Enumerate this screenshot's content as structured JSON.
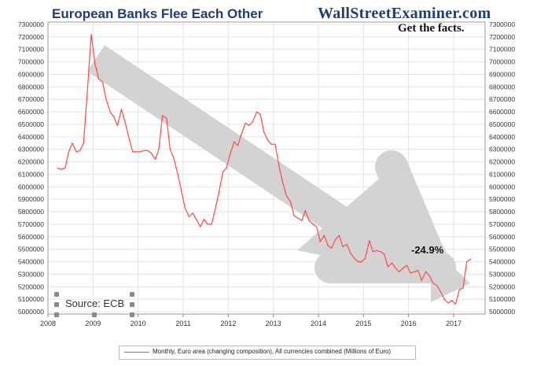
{
  "header": {
    "title": "European Banks Flee Each Other",
    "brand": "WallStreetExaminer.com",
    "tagline": "Get the facts."
  },
  "annotation": {
    "change_label": "-24.9%"
  },
  "source": {
    "label": "Source: ECB"
  },
  "legend": {
    "label": "Monthly, Euro area (changing composition), All currencies combined (Millions of Euro)"
  },
  "colors": {
    "series": "#ff4a4a",
    "arrow": "#d3d3d3",
    "title": "#1f3e78"
  },
  "chart_data": {
    "type": "line",
    "grid": true,
    "ylim": [
      5000000,
      7300000
    ],
    "xlim": [
      2008.0,
      2017.5
    ],
    "y_ticks": [
      5000000,
      5100000,
      5200000,
      5300000,
      5400000,
      5500000,
      5600000,
      5700000,
      5800000,
      5900000,
      6000000,
      6100000,
      6200000,
      6300000,
      6400000,
      6500000,
      6600000,
      6700000,
      6800000,
      6900000,
      7000000,
      7100000,
      7200000,
      7300000
    ],
    "x_ticks": [
      "2008",
      "2009",
      "2010",
      "2011",
      "2012",
      "2013",
      "2014",
      "2015",
      "2016",
      "2017"
    ],
    "series": [
      {
        "name": "Monthly, Euro area (changing composition), All currencies combined (Millions of Euro)",
        "x": [
          2008.21,
          2008.29,
          2008.38,
          2008.46,
          2008.54,
          2008.63,
          2008.71,
          2008.79,
          2008.88,
          2008.96,
          2009.04,
          2009.13,
          2009.21,
          2009.29,
          2009.38,
          2009.46,
          2009.54,
          2009.63,
          2009.71,
          2009.79,
          2009.88,
          2009.96,
          2010.04,
          2010.13,
          2010.21,
          2010.29,
          2010.38,
          2010.46,
          2010.54,
          2010.63,
          2010.71,
          2010.79,
          2010.88,
          2010.96,
          2011.04,
          2011.13,
          2011.21,
          2011.29,
          2011.38,
          2011.46,
          2011.54,
          2011.63,
          2011.71,
          2011.79,
          2011.88,
          2011.96,
          2012.04,
          2012.13,
          2012.21,
          2012.29,
          2012.38,
          2012.46,
          2012.54,
          2012.63,
          2012.71,
          2012.79,
          2012.88,
          2012.96,
          2013.04,
          2013.13,
          2013.21,
          2013.29,
          2013.38,
          2013.46,
          2013.54,
          2013.63,
          2013.71,
          2013.79,
          2013.88,
          2013.96,
          2014.04,
          2014.13,
          2014.21,
          2014.29,
          2014.38,
          2014.46,
          2014.54,
          2014.63,
          2014.71,
          2014.79,
          2014.88,
          2014.96,
          2015.04,
          2015.13,
          2015.21,
          2015.29,
          2015.38,
          2015.46,
          2015.54,
          2015.63,
          2015.71,
          2015.79,
          2015.88,
          2015.96,
          2016.04,
          2016.13,
          2016.21,
          2016.29,
          2016.38,
          2016.46,
          2016.54,
          2016.63,
          2016.71,
          2016.79,
          2016.88,
          2016.96,
          2017.04,
          2017.13,
          2017.21,
          2017.29,
          2017.38
        ],
        "values": [
          6150000,
          6140000,
          6150000,
          6280000,
          6350000,
          6280000,
          6290000,
          6350000,
          6800000,
          7220000,
          6990000,
          6860000,
          6840000,
          6700000,
          6600000,
          6560000,
          6490000,
          6620000,
          6520000,
          6400000,
          6280000,
          6280000,
          6280000,
          6290000,
          6290000,
          6270000,
          6220000,
          6300000,
          6570000,
          6550000,
          6300000,
          6230000,
          6100000,
          5970000,
          5830000,
          5760000,
          5790000,
          5740000,
          5680000,
          5740000,
          5700000,
          5700000,
          5820000,
          5950000,
          6120000,
          6150000,
          6260000,
          6360000,
          6330000,
          6420000,
          6510000,
          6490000,
          6520000,
          6600000,
          6580000,
          6440000,
          6370000,
          6340000,
          6340000,
          6160000,
          6030000,
          5930000,
          5880000,
          5770000,
          5750000,
          5730000,
          5810000,
          5730000,
          5700000,
          5680000,
          5560000,
          5610000,
          5530000,
          5510000,
          5580000,
          5610000,
          5520000,
          5540000,
          5470000,
          5430000,
          5400000,
          5400000,
          5430000,
          5570000,
          5480000,
          5490000,
          5480000,
          5460000,
          5360000,
          5390000,
          5350000,
          5320000,
          5350000,
          5370000,
          5310000,
          5320000,
          5330000,
          5250000,
          5320000,
          5290000,
          5230000,
          5210000,
          5160000,
          5100000,
          5070000,
          5090000,
          5060000,
          5180000,
          5190000,
          5400000,
          5420000
        ]
      }
    ]
  }
}
